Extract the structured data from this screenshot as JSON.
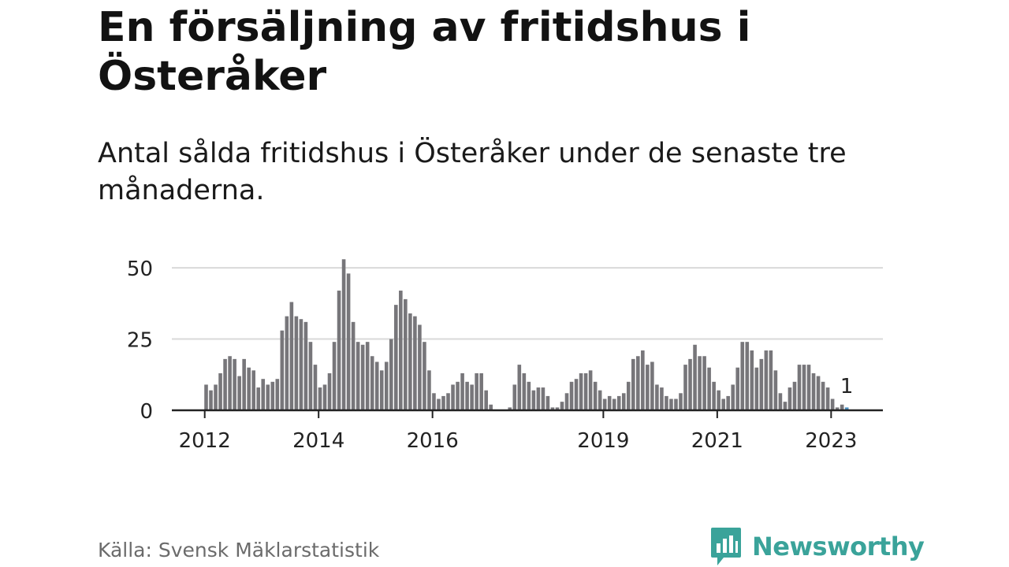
{
  "title": "En försäljning av fritidshus i Österåker",
  "subtitle": "Antal sålda fritidshus i Österåker under de senaste tre månaderna.",
  "source": "Källa: Svensk Mäklarstatistik",
  "brand": {
    "name": "Newsworthy",
    "icon": "newsworthy-logo-icon",
    "color": "#3aa39a"
  },
  "colors": {
    "bar": "#77767a",
    "highlight": "#4a8fc0",
    "grid": "#d9d9d9",
    "axis": "#222222"
  },
  "chart_data": {
    "type": "bar",
    "ylim": [
      0,
      55
    ],
    "y_ticks": [
      0,
      25,
      50
    ],
    "x_ticks": [
      "2012",
      "2014",
      "2016",
      "2019",
      "2021",
      "2023"
    ],
    "x_tick_month_index": [
      0,
      24,
      48,
      84,
      108,
      132
    ],
    "grid": true,
    "highlight_label": "1",
    "series": [
      {
        "values": [
          9,
          7,
          9,
          13,
          18,
          19,
          18,
          12,
          18,
          15,
          14,
          8,
          11,
          9,
          10,
          11,
          28,
          33,
          38,
          33,
          32,
          31,
          24,
          16,
          8,
          9,
          13,
          24,
          42,
          53,
          48,
          31,
          24,
          23,
          24,
          19,
          17,
          14,
          17,
          25,
          37,
          42,
          39,
          34,
          33,
          30,
          24,
          14,
          6,
          4,
          5,
          6,
          9,
          10,
          13,
          10,
          9,
          13,
          13,
          7,
          2,
          0,
          0,
          0,
          1,
          9,
          16,
          13,
          10,
          7,
          8,
          8,
          5,
          1,
          1,
          3,
          6,
          10,
          11,
          13,
          13,
          14,
          10,
          7,
          4,
          5,
          4,
          5,
          6,
          10,
          18,
          19,
          21,
          16,
          17,
          9,
          8,
          5,
          4,
          4,
          6,
          16,
          18,
          23,
          19,
          19,
          15,
          10,
          7,
          4,
          5,
          9,
          15,
          24,
          24,
          21,
          15,
          18,
          21,
          21,
          14,
          6,
          3,
          8,
          10,
          16,
          16,
          16,
          13,
          12,
          10,
          8,
          4,
          1,
          2,
          1
        ]
      }
    ]
  }
}
